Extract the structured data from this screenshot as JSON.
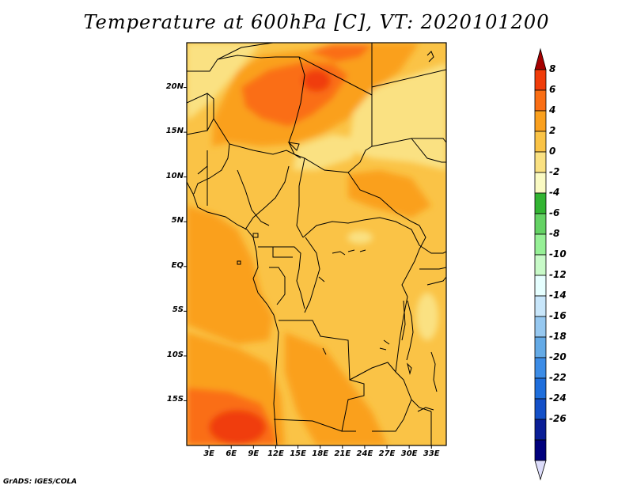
{
  "title": "Temperature at 600hPa [C], VT: 2020101200",
  "credit": "GrADS: IGES/COLA",
  "map": {
    "lon_range": [
      0,
      35
    ],
    "lat_range": [
      -20,
      25
    ],
    "lat_ticks": [
      {
        "value": 20,
        "label": "20N"
      },
      {
        "value": 15,
        "label": "15N"
      },
      {
        "value": 10,
        "label": "10N"
      },
      {
        "value": 5,
        "label": "5N"
      },
      {
        "value": 0,
        "label": "EQ"
      },
      {
        "value": -5,
        "label": "5S"
      },
      {
        "value": -10,
        "label": "10S"
      },
      {
        "value": -15,
        "label": "15S"
      }
    ],
    "lon_ticks": [
      {
        "value": 3,
        "label": "3E"
      },
      {
        "value": 6,
        "label": "6E"
      },
      {
        "value": 9,
        "label": "9E"
      },
      {
        "value": 12,
        "label": "12E"
      },
      {
        "value": 15,
        "label": "15E"
      },
      {
        "value": 18,
        "label": "18E"
      },
      {
        "value": 21,
        "label": "21E"
      },
      {
        "value": 24,
        "label": "24E"
      },
      {
        "value": 27,
        "label": "27E"
      },
      {
        "value": 30,
        "label": "30E"
      },
      {
        "value": 33,
        "label": "33E"
      }
    ]
  },
  "colorbar": {
    "levels": [
      "8",
      "6",
      "4",
      "2",
      "0",
      "-2",
      "-4",
      "-6",
      "-8",
      "-10",
      "-12",
      "-14",
      "-16",
      "-18",
      "-20",
      "-22",
      "-24",
      "-26"
    ],
    "colors": [
      "#a50000",
      "#f03c0a",
      "#fa6e14",
      "#faa01e",
      "#fac346",
      "#fae182",
      "#fafac3",
      "#32b432",
      "#64d264",
      "#96f096",
      "#c8fac8",
      "#e6ffff",
      "#c8e6fa",
      "#96c8f0",
      "#64aae6",
      "#3c8ce6",
      "#1e6edc",
      "#1450c8",
      "#0a1e96",
      "#00007d",
      "#dcdcfa"
    ]
  }
}
